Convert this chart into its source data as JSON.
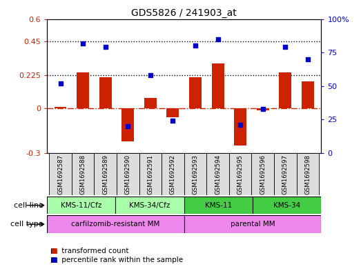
{
  "title": "GDS5826 / 241903_at",
  "samples": [
    "GSM1692587",
    "GSM1692588",
    "GSM1692589",
    "GSM1692590",
    "GSM1692591",
    "GSM1692592",
    "GSM1692593",
    "GSM1692594",
    "GSM1692595",
    "GSM1692596",
    "GSM1692597",
    "GSM1692598"
  ],
  "transformed_count": [
    0.01,
    0.24,
    0.21,
    -0.22,
    0.07,
    -0.06,
    0.21,
    0.3,
    -0.25,
    -0.015,
    0.24,
    0.18
  ],
  "percentile_rank": [
    52,
    82,
    79,
    20,
    58,
    24,
    80,
    85,
    21,
    33,
    79,
    70
  ],
  "bar_color": "#cc2200",
  "dot_color": "#0000cc",
  "ylim_left": [
    -0.3,
    0.6
  ],
  "ylim_right": [
    0,
    100
  ],
  "yticks_left": [
    -0.3,
    0.0,
    0.225,
    0.45,
    0.6
  ],
  "yticks_left_labels": [
    "-0.3",
    "0",
    "0.225",
    "0.45",
    "0.6"
  ],
  "yticks_right": [
    0,
    25,
    50,
    75,
    100
  ],
  "yticks_right_labels": [
    "0",
    "25",
    "50",
    "75",
    "100%"
  ],
  "hline1": 0.225,
  "hline2": 0.45,
  "zero_line": 0.0,
  "cell_line_groups": [
    {
      "label": "KMS-11/Cfz",
      "start": 0,
      "end": 3,
      "color": "#aaffaa"
    },
    {
      "label": "KMS-34/Cfz",
      "start": 3,
      "end": 6,
      "color": "#aaffaa"
    },
    {
      "label": "KMS-11",
      "start": 6,
      "end": 9,
      "color": "#44cc44"
    },
    {
      "label": "KMS-34",
      "start": 9,
      "end": 12,
      "color": "#44cc44"
    }
  ],
  "cell_type_groups": [
    {
      "label": "carfilzomib-resistant MM",
      "start": 0,
      "end": 6,
      "color": "#ee88ee"
    },
    {
      "label": "parental MM",
      "start": 6,
      "end": 12,
      "color": "#ee88ee"
    }
  ],
  "sample_bg_color": "#dddddd",
  "legend_bar_label": "transformed count",
  "legend_dot_label": "percentile rank within the sample",
  "cell_line_label": "cell line",
  "cell_type_label": "cell type"
}
